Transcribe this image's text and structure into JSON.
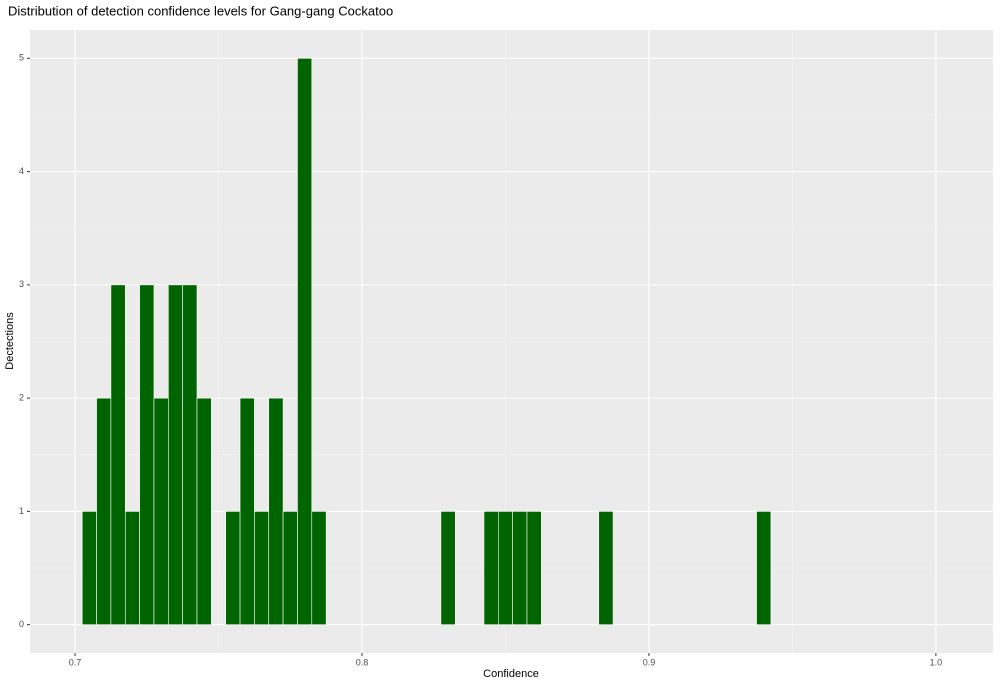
{
  "chart_data": {
    "type": "histogram",
    "title": "Distribution of detection confidence levels for Gang-gang Cockatoo",
    "x_label": "Confidence",
    "y_label": "Dectections",
    "bins": [
      0.7025,
      0.7075,
      0.7125,
      0.7175,
      0.7225,
      0.7275,
      0.7325,
      0.7375,
      0.7425,
      0.7475,
      0.7525,
      0.7575,
      0.7625,
      0.7675,
      0.7725,
      0.7775,
      0.7825,
      0.7875,
      0.7925,
      0.7975,
      0.8025,
      0.8075,
      0.8125,
      0.8175,
      0.8225,
      0.8275,
      0.8325,
      0.8375,
      0.8425,
      0.8475,
      0.8525,
      0.8575,
      0.8625,
      0.8675,
      0.8725,
      0.8775,
      0.8825,
      0.8875,
      0.8925,
      0.8975,
      0.9025,
      0.9075,
      0.9125,
      0.9175,
      0.9225,
      0.9275,
      0.9325,
      0.9375,
      0.9425
    ],
    "counts": [
      1,
      2,
      3,
      1,
      3,
      2,
      3,
      3,
      2,
      0,
      1,
      2,
      1,
      2,
      1,
      5,
      1,
      0,
      0,
      0,
      0,
      0,
      0,
      0,
      0,
      1,
      0,
      0,
      1,
      1,
      1,
      1,
      0,
      0,
      0,
      0,
      1,
      0,
      0,
      0,
      0,
      0,
      0,
      0,
      0,
      0,
      0,
      1
    ],
    "color": "#006400",
    "xlim": [
      0.6843,
      1.0199
    ],
    "xticks": [
      0.7,
      0.8,
      0.9,
      {
        "value": 1,
        "label": "1.0"
      }
    ],
    "ylim": [
      -0.25,
      5.25
    ],
    "yticks": [
      0,
      1,
      2,
      3,
      4,
      5
    ],
    "grid": true
  }
}
